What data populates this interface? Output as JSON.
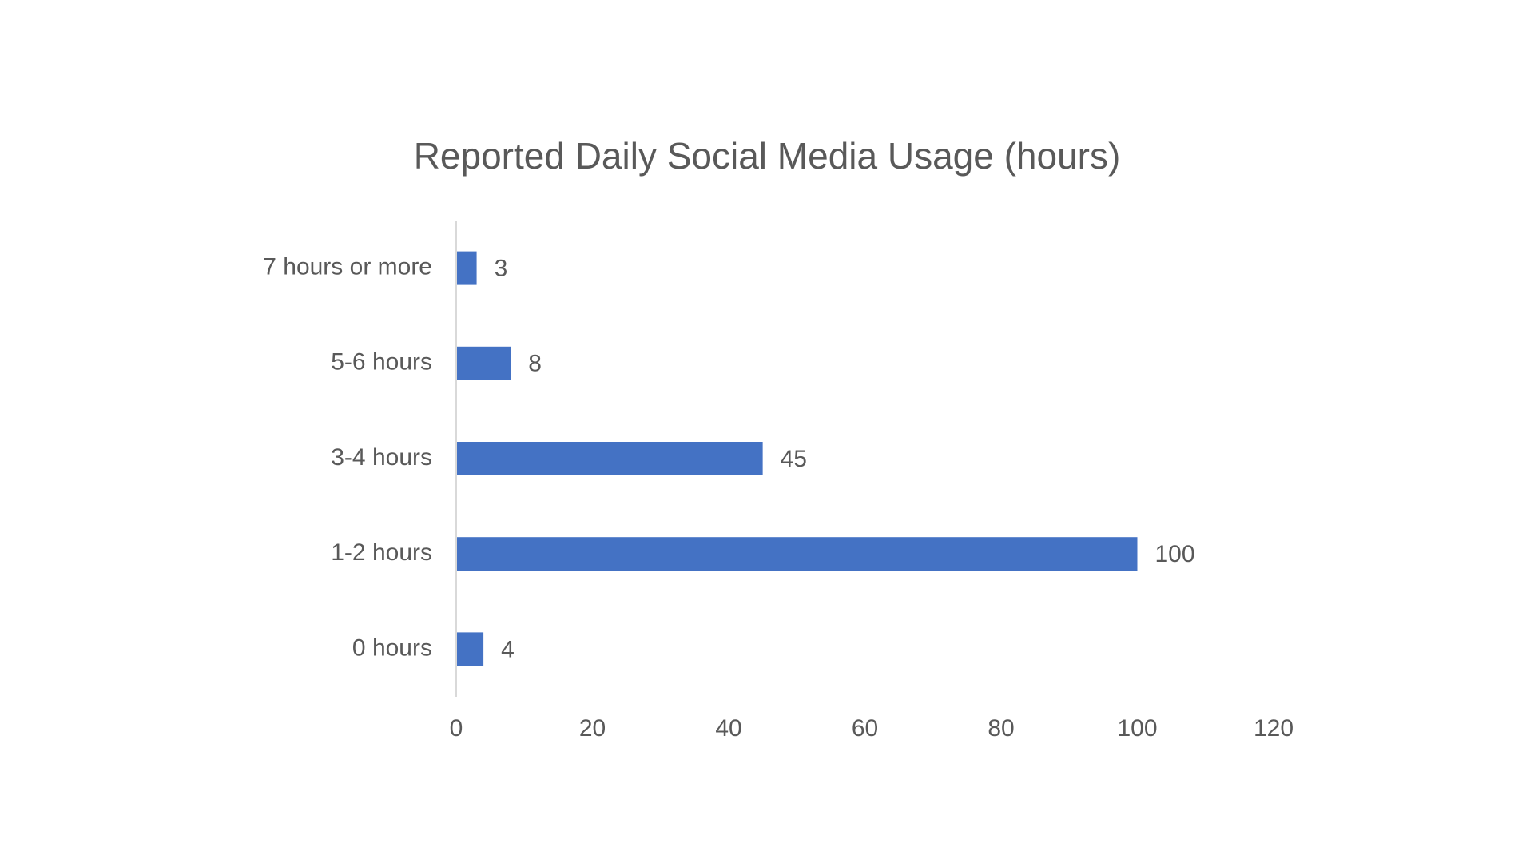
{
  "chart_data": {
    "type": "bar",
    "orientation": "horizontal",
    "title": "Reported Daily Social Media Usage (hours)",
    "xlabel": "",
    "ylabel": "",
    "categories": [
      "7 hours or more",
      "5-6 hours",
      "3-4 hours",
      "1-2 hours",
      "0 hours"
    ],
    "values": [
      3,
      8,
      45,
      100,
      4
    ],
    "data_labels": [
      "3",
      "8",
      "45",
      "100",
      "4"
    ],
    "xlim": [
      0,
      120
    ],
    "x_ticks": [
      0,
      20,
      40,
      60,
      80,
      100,
      120
    ],
    "x_tick_labels": [
      "0",
      "20",
      "40",
      "60",
      "80",
      "100",
      "120"
    ],
    "grid": false,
    "legend": "none",
    "colors": {
      "bar": "#4472C4",
      "axis": "#D9D9D9",
      "text": "#595959"
    }
  }
}
